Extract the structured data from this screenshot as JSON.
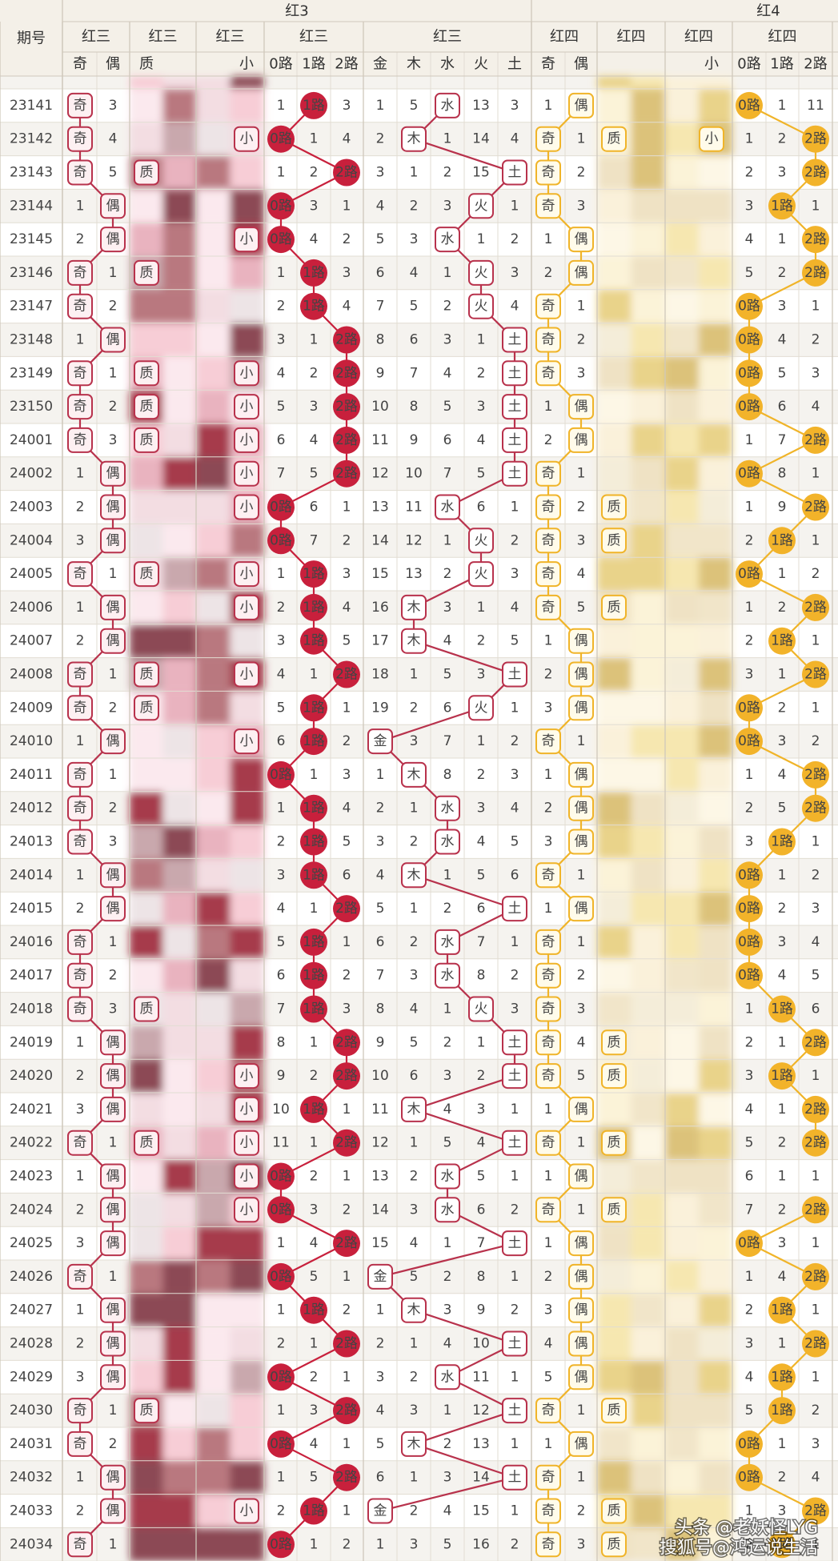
{
  "header": {
    "period": "期号",
    "groups": [
      "红3",
      "红4"
    ],
    "subgroups": [
      "红三",
      "红三",
      "红三",
      "红三",
      "红三",
      "红四",
      "红四",
      "红四",
      "红四"
    ],
    "columns": [
      "奇",
      "偶",
      "质",
      "小",
      "0路",
      "1路",
      "2路",
      "金",
      "木",
      "水",
      "火",
      "土",
      "奇",
      "偶",
      null,
      "小",
      "0路",
      "1路",
      "2路"
    ]
  },
  "rows": [
    {
      "period": "23141",
      "cells": [
        "奇",
        3,
        null,
        null,
        1,
        "1路",
        3,
        1,
        5,
        "水",
        13,
        3,
        1,
        "偶",
        null,
        null,
        "0路",
        1,
        11
      ]
    },
    {
      "period": "23142",
      "cells": [
        "奇",
        4,
        null,
        "小",
        "0路",
        1,
        4,
        2,
        "木",
        1,
        14,
        4,
        "奇",
        1,
        "质",
        "小",
        1,
        2,
        "2路"
      ]
    },
    {
      "period": "23143",
      "cells": [
        "奇",
        5,
        "质",
        null,
        1,
        2,
        "2路",
        3,
        1,
        2,
        15,
        "土",
        "奇",
        2,
        null,
        null,
        2,
        3,
        "2路"
      ]
    },
    {
      "period": "23144",
      "cells": [
        1,
        "偶",
        null,
        null,
        "0路",
        3,
        1,
        4,
        2,
        3,
        "火",
        1,
        "奇",
        3,
        null,
        null,
        3,
        "1路",
        1
      ]
    },
    {
      "period": "23145",
      "cells": [
        2,
        "偶",
        null,
        "小",
        "0路",
        4,
        2,
        5,
        3,
        "水",
        1,
        2,
        1,
        "偶",
        null,
        null,
        4,
        1,
        "2路"
      ]
    },
    {
      "period": "23146",
      "cells": [
        "奇",
        1,
        "质",
        null,
        1,
        "1路",
        3,
        6,
        4,
        1,
        "火",
        3,
        2,
        "偶",
        null,
        null,
        5,
        2,
        "2路"
      ]
    },
    {
      "period": "23147",
      "cells": [
        "奇",
        2,
        null,
        null,
        2,
        "1路",
        4,
        7,
        5,
        2,
        "火",
        4,
        "奇",
        1,
        null,
        null,
        "0路",
        3,
        1
      ]
    },
    {
      "period": "23148",
      "cells": [
        1,
        "偶",
        null,
        null,
        3,
        1,
        "2路",
        8,
        6,
        3,
        1,
        "土",
        "奇",
        2,
        null,
        null,
        "0路",
        4,
        2
      ]
    },
    {
      "period": "23149",
      "cells": [
        "奇",
        1,
        "质",
        "小",
        4,
        2,
        "2路",
        9,
        7,
        4,
        2,
        "土",
        "奇",
        3,
        null,
        null,
        "0路",
        5,
        3
      ]
    },
    {
      "period": "23150",
      "cells": [
        "奇",
        2,
        "质",
        "小",
        5,
        3,
        "2路",
        10,
        8,
        5,
        3,
        "土",
        1,
        "偶",
        null,
        null,
        "0路",
        6,
        4
      ]
    },
    {
      "period": "24001",
      "cells": [
        "奇",
        3,
        "质",
        "小",
        6,
        4,
        "2路",
        11,
        9,
        6,
        4,
        "土",
        2,
        "偶",
        null,
        null,
        1,
        7,
        "2路"
      ]
    },
    {
      "period": "24002",
      "cells": [
        1,
        "偶",
        null,
        "小",
        7,
        5,
        "2路",
        12,
        10,
        7,
        5,
        "土",
        "奇",
        1,
        null,
        null,
        "0路",
        8,
        1
      ]
    },
    {
      "period": "24003",
      "cells": [
        2,
        "偶",
        null,
        "小",
        "0路",
        6,
        1,
        13,
        11,
        "水",
        6,
        1,
        "奇",
        2,
        "质",
        null,
        1,
        9,
        "2路"
      ]
    },
    {
      "period": "24004",
      "cells": [
        3,
        "偶",
        null,
        null,
        "0路",
        7,
        2,
        14,
        12,
        1,
        "火",
        2,
        "奇",
        3,
        "质",
        null,
        2,
        "1路",
        1
      ]
    },
    {
      "period": "24005",
      "cells": [
        "奇",
        1,
        "质",
        "小",
        1,
        "1路",
        3,
        15,
        13,
        2,
        "火",
        3,
        "奇",
        4,
        null,
        null,
        "0路",
        1,
        2
      ]
    },
    {
      "period": "24006",
      "cells": [
        1,
        "偶",
        null,
        "小",
        2,
        "1路",
        4,
        16,
        "木",
        3,
        1,
        4,
        "奇",
        5,
        "质",
        null,
        1,
        2,
        "2路"
      ]
    },
    {
      "period": "24007",
      "cells": [
        2,
        "偶",
        null,
        null,
        3,
        "1路",
        5,
        17,
        "木",
        4,
        2,
        5,
        1,
        "偶",
        null,
        null,
        2,
        "1路",
        1
      ]
    },
    {
      "period": "24008",
      "cells": [
        "奇",
        1,
        "质",
        "小",
        4,
        1,
        "2路",
        18,
        1,
        5,
        3,
        "土",
        2,
        "偶",
        null,
        null,
        3,
        1,
        "2路"
      ]
    },
    {
      "period": "24009",
      "cells": [
        "奇",
        2,
        "质",
        null,
        5,
        "1路",
        1,
        19,
        2,
        6,
        "火",
        1,
        3,
        "偶",
        null,
        null,
        "0路",
        2,
        1
      ]
    },
    {
      "period": "24010",
      "cells": [
        1,
        "偶",
        null,
        "小",
        6,
        "1路",
        2,
        "金",
        3,
        7,
        1,
        2,
        "奇",
        1,
        null,
        null,
        "0路",
        3,
        2
      ]
    },
    {
      "period": "24011",
      "cells": [
        "奇",
        1,
        null,
        null,
        "0路",
        1,
        3,
        1,
        "木",
        8,
        2,
        3,
        1,
        "偶",
        null,
        null,
        1,
        4,
        "2路"
      ]
    },
    {
      "period": "24012",
      "cells": [
        "奇",
        2,
        null,
        null,
        1,
        "1路",
        4,
        2,
        1,
        "水",
        3,
        4,
        2,
        "偶",
        null,
        null,
        2,
        5,
        "2路"
      ]
    },
    {
      "period": "24013",
      "cells": [
        "奇",
        3,
        null,
        null,
        2,
        "1路",
        5,
        3,
        2,
        "水",
        4,
        5,
        3,
        "偶",
        null,
        null,
        3,
        "1路",
        1
      ]
    },
    {
      "period": "24014",
      "cells": [
        1,
        "偶",
        null,
        null,
        3,
        "1路",
        6,
        4,
        "木",
        1,
        5,
        6,
        "奇",
        1,
        null,
        null,
        "0路",
        1,
        2
      ]
    },
    {
      "period": "24015",
      "cells": [
        2,
        "偶",
        null,
        null,
        4,
        1,
        "2路",
        5,
        1,
        2,
        6,
        "土",
        1,
        "偶",
        null,
        null,
        "0路",
        2,
        3
      ]
    },
    {
      "period": "24016",
      "cells": [
        "奇",
        1,
        null,
        null,
        5,
        "1路",
        1,
        6,
        2,
        "水",
        7,
        1,
        "奇",
        1,
        null,
        null,
        "0路",
        3,
        4
      ]
    },
    {
      "period": "24017",
      "cells": [
        "奇",
        2,
        null,
        null,
        6,
        "1路",
        2,
        7,
        3,
        "水",
        8,
        2,
        "奇",
        2,
        null,
        null,
        "0路",
        4,
        5
      ]
    },
    {
      "period": "24018",
      "cells": [
        "奇",
        3,
        "质",
        null,
        7,
        "1路",
        3,
        8,
        4,
        1,
        "火",
        3,
        "奇",
        3,
        null,
        null,
        1,
        "1路",
        6
      ]
    },
    {
      "period": "24019",
      "cells": [
        1,
        "偶",
        null,
        null,
        8,
        1,
        "2路",
        9,
        5,
        2,
        1,
        "土",
        "奇",
        4,
        "质",
        null,
        2,
        1,
        "2路"
      ]
    },
    {
      "period": "24020",
      "cells": [
        2,
        "偶",
        null,
        "小",
        9,
        2,
        "2路",
        10,
        6,
        3,
        2,
        "土",
        "奇",
        5,
        "质",
        null,
        3,
        "1路",
        1
      ]
    },
    {
      "period": "24021",
      "cells": [
        3,
        "偶",
        null,
        "小",
        10,
        "1路",
        1,
        11,
        "木",
        4,
        3,
        1,
        1,
        "偶",
        null,
        null,
        4,
        1,
        "2路"
      ]
    },
    {
      "period": "24022",
      "cells": [
        "奇",
        1,
        "质",
        "小",
        11,
        1,
        "2路",
        12,
        1,
        5,
        4,
        "土",
        "奇",
        1,
        "质",
        null,
        5,
        2,
        "2路"
      ]
    },
    {
      "period": "24023",
      "cells": [
        1,
        "偶",
        null,
        "小",
        "0路",
        2,
        1,
        13,
        2,
        "水",
        5,
        1,
        1,
        "偶",
        null,
        null,
        6,
        1,
        1
      ]
    },
    {
      "period": "24024",
      "cells": [
        2,
        "偶",
        null,
        "小",
        "0路",
        3,
        2,
        14,
        3,
        "水",
        6,
        2,
        "奇",
        1,
        "质",
        null,
        7,
        2,
        "2路"
      ]
    },
    {
      "period": "24025",
      "cells": [
        3,
        "偶",
        null,
        null,
        1,
        4,
        "2路",
        15,
        4,
        1,
        7,
        "土",
        1,
        "偶",
        null,
        null,
        "0路",
        3,
        1
      ]
    },
    {
      "period": "24026",
      "cells": [
        "奇",
        1,
        null,
        null,
        "0路",
        5,
        1,
        "金",
        5,
        2,
        8,
        1,
        2,
        "偶",
        null,
        null,
        1,
        4,
        "2路"
      ]
    },
    {
      "period": "24027",
      "cells": [
        1,
        "偶",
        null,
        null,
        1,
        "1路",
        2,
        1,
        "木",
        3,
        9,
        2,
        3,
        "偶",
        null,
        null,
        2,
        "1路",
        1
      ]
    },
    {
      "period": "24028",
      "cells": [
        2,
        "偶",
        null,
        null,
        2,
        1,
        "2路",
        2,
        1,
        4,
        10,
        "土",
        4,
        "偶",
        null,
        null,
        3,
        1,
        "2路"
      ]
    },
    {
      "period": "24029",
      "cells": [
        3,
        "偶",
        null,
        null,
        "0路",
        2,
        1,
        3,
        2,
        "水",
        11,
        1,
        5,
        "偶",
        null,
        null,
        4,
        "1路",
        1
      ]
    },
    {
      "period": "24030",
      "cells": [
        "奇",
        1,
        "质",
        null,
        1,
        3,
        "2路",
        4,
        3,
        1,
        12,
        "土",
        "奇",
        1,
        "质",
        null,
        5,
        "1路",
        2
      ]
    },
    {
      "period": "24031",
      "cells": [
        "奇",
        2,
        null,
        null,
        "0路",
        4,
        1,
        5,
        "木",
        2,
        13,
        1,
        1,
        "偶",
        null,
        null,
        "0路",
        1,
        3
      ]
    },
    {
      "period": "24032",
      "cells": [
        1,
        "偶",
        null,
        null,
        1,
        5,
        "2路",
        6,
        1,
        3,
        14,
        "土",
        "奇",
        1,
        null,
        null,
        "0路",
        2,
        4
      ]
    },
    {
      "period": "24033",
      "cells": [
        2,
        "偶",
        null,
        "小",
        2,
        "1路",
        1,
        "金",
        2,
        4,
        15,
        1,
        "奇",
        2,
        "质",
        null,
        1,
        3,
        "2路"
      ]
    },
    {
      "period": "24034",
      "cells": [
        "奇",
        1,
        null,
        null,
        "0路",
        1,
        2,
        1,
        3,
        5,
        16,
        2,
        "奇",
        3,
        "质",
        null,
        2,
        "1路",
        1
      ]
    }
  ],
  "watermarks": [
    "头条 @老妖怪LYG",
    "搜狐号@鸿运说生活"
  ]
}
